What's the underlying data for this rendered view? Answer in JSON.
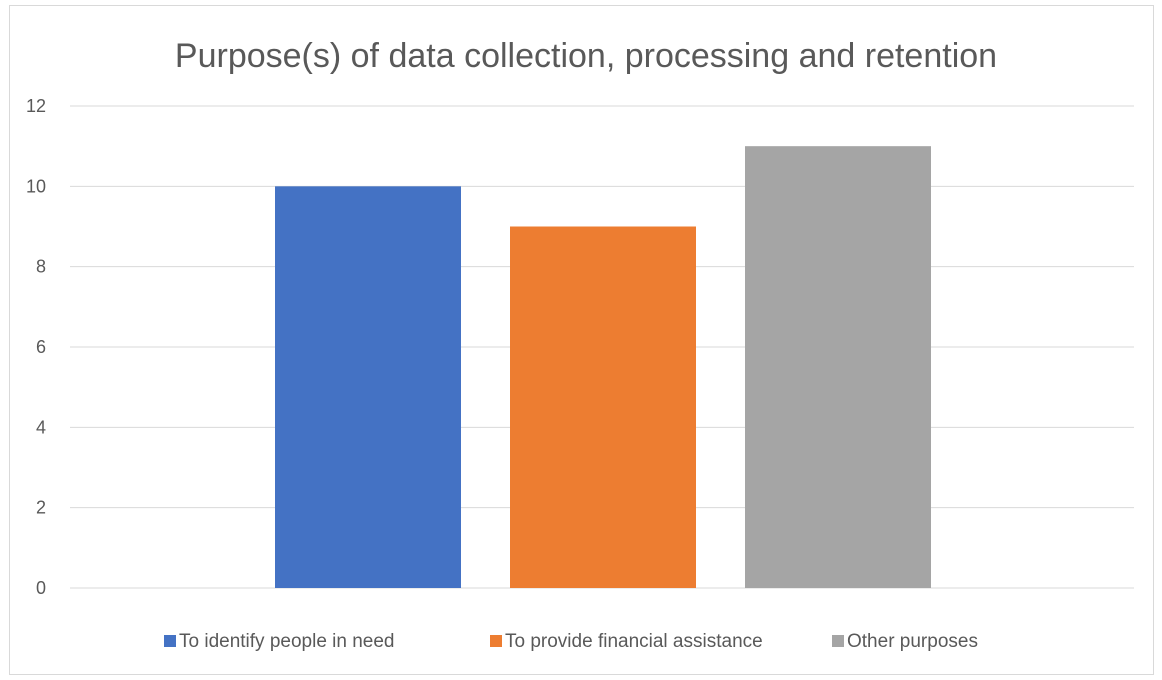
{
  "chart_data": {
    "type": "bar",
    "title": "Purpose(s) of data collection, processing and retention",
    "xlabel": "",
    "ylabel": "",
    "ylim": [
      0,
      12
    ],
    "yticks": [
      "0",
      "2",
      "4",
      "6",
      "8",
      "10",
      "12"
    ],
    "grid": true,
    "legend_position": "bottom",
    "series": [
      {
        "name": "To identify people in need",
        "value": 10,
        "color": "#4472c4"
      },
      {
        "name": "To provide financial assistance",
        "value": 9,
        "color": "#ed7d31"
      },
      {
        "name": "Other purposes",
        "value": 11,
        "color": "#a5a5a5"
      }
    ]
  }
}
